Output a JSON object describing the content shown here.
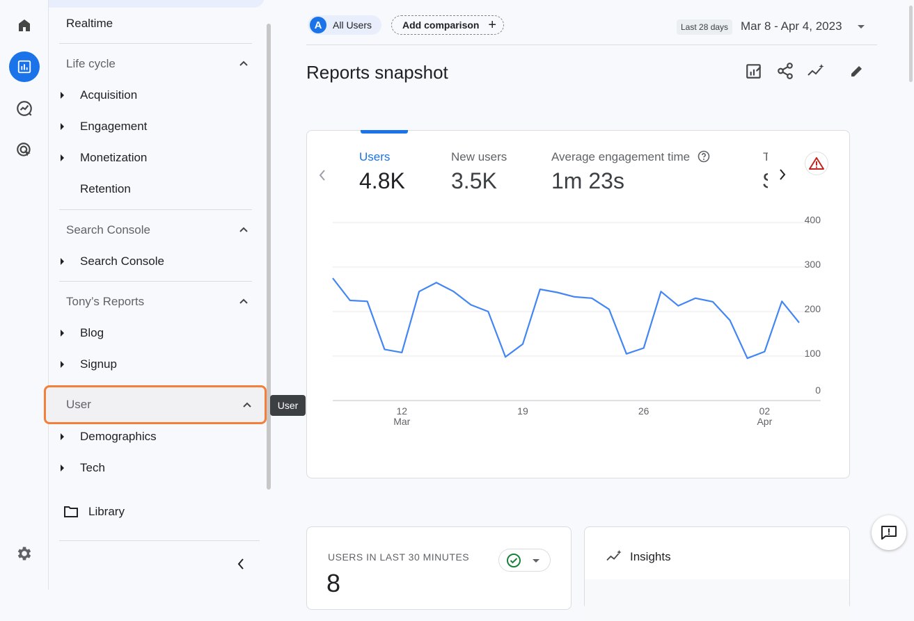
{
  "nav": {
    "realtime": "Realtime",
    "lifecycle": {
      "title": "Life cycle",
      "items": [
        "Acquisition",
        "Engagement",
        "Monetization",
        "Retention"
      ]
    },
    "search_console": {
      "title": "Search Console",
      "items": [
        "Search Console"
      ]
    },
    "tonys_reports": {
      "title": "Tony’s Reports",
      "items": [
        "Blog",
        "Signup"
      ]
    },
    "user": {
      "title": "User",
      "items": [
        "Demographics",
        "Tech"
      ]
    },
    "library": "Library",
    "tooltip": "User"
  },
  "topbar": {
    "segment_avatar": "A",
    "segment": "All Users",
    "add_comparison": "Add comparison",
    "plus": "+",
    "date_badge": "Last 28 days",
    "date_range": "Mar 8 - Apr 4, 2023"
  },
  "page_title": "Reports snapshot",
  "metrics": [
    {
      "label": "Users",
      "value": "4.8K"
    },
    {
      "label": "New users",
      "value": "3.5K"
    },
    {
      "label": "Average engagement time",
      "value": "1m 23s"
    },
    {
      "label": "T",
      "value": "$"
    }
  ],
  "chart_data": {
    "type": "line",
    "x": [
      "Mar 8",
      "Mar 9",
      "Mar 10",
      "Mar 11",
      "Mar 12",
      "Mar 13",
      "Mar 14",
      "Mar 15",
      "Mar 16",
      "Mar 17",
      "Mar 18",
      "Mar 19",
      "Mar 20",
      "Mar 21",
      "Mar 22",
      "Mar 23",
      "Mar 24",
      "Mar 25",
      "Mar 26",
      "Mar 27",
      "Mar 28",
      "Mar 29",
      "Mar 30",
      "Mar 31",
      "Apr 1",
      "Apr 2",
      "Apr 3",
      "Apr 4"
    ],
    "series": [
      {
        "values": [
          275,
          225,
          223,
          115,
          108,
          245,
          265,
          245,
          215,
          200,
          98,
          127,
          250,
          243,
          233,
          230,
          205,
          105,
          118,
          245,
          213,
          230,
          222,
          180,
          95,
          110,
          223,
          175
        ]
      }
    ],
    "ylim": [
      0,
      400
    ],
    "y_ticks": [
      "0",
      "100",
      "200",
      "300",
      "400"
    ],
    "x_ticks": [
      {
        "day": "12",
        "month": "Mar"
      },
      {
        "day": "19",
        "month": ""
      },
      {
        "day": "26",
        "month": ""
      },
      {
        "day": "02",
        "month": "Apr"
      }
    ],
    "y_axis_side": "right",
    "grid": true,
    "colors": {
      "line": "#4285f4",
      "grid": "#e8eaed"
    }
  },
  "realtime_card": {
    "title": "USERS IN LAST 30 MINUTES",
    "value": "8"
  },
  "insights_card": {
    "title": "Insights"
  },
  "colors": {
    "accent": "#1a73e8",
    "highlight": "#f47f3b"
  }
}
